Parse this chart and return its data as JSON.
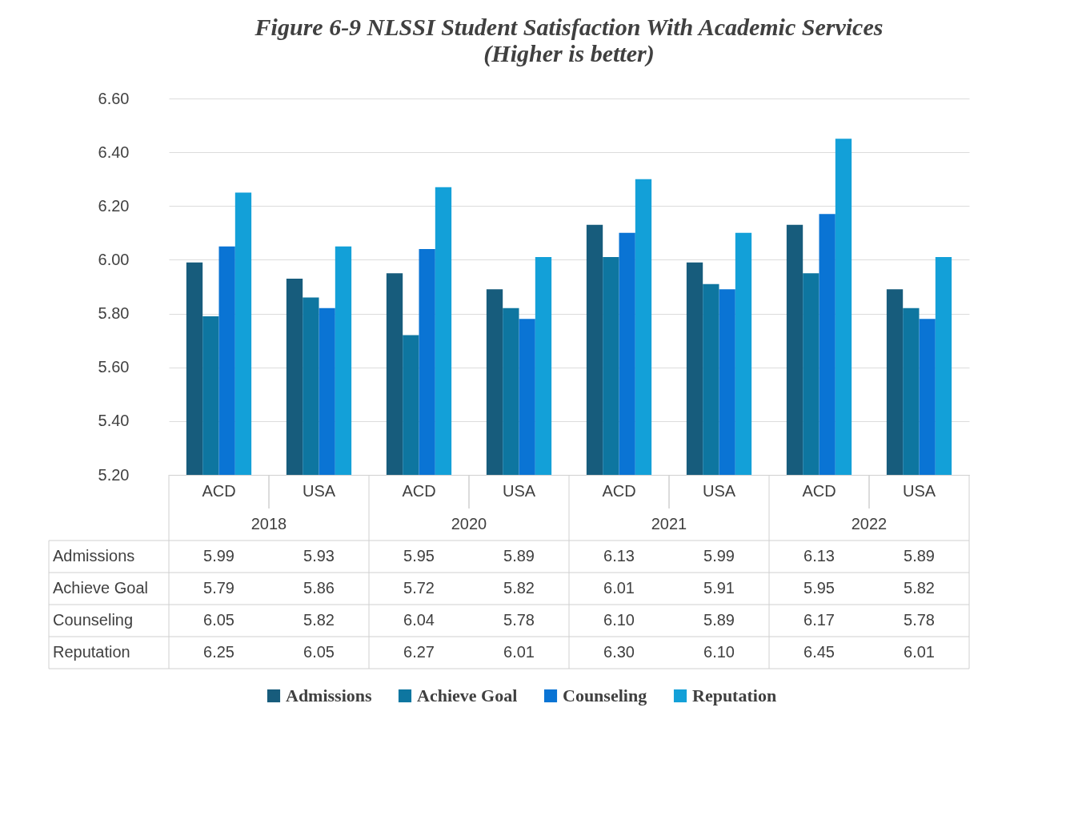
{
  "chart_data": {
    "type": "bar",
    "title": "Figure 6-9 NLSSI Student Satisfaction With Academic Services",
    "subtitle": "(Higher is better)",
    "categories": [
      "ACD",
      "USA",
      "ACD",
      "USA",
      "ACD",
      "USA",
      "ACD",
      "USA"
    ],
    "annotations": [
      "2018",
      "2020",
      "2021",
      "2022"
    ],
    "series": [
      {
        "name": "Admissions",
        "color": "#175c7c",
        "values": [
          5.99,
          5.93,
          5.95,
          5.89,
          6.13,
          5.99,
          6.13,
          5.89
        ],
        "value_labels": [
          "5.99",
          "5.93",
          "5.95",
          "5.89",
          "6.13",
          "5.99",
          "6.13",
          "5.89"
        ]
      },
      {
        "name": "Achieve Goal",
        "color": "#0e76a0",
        "values": [
          5.79,
          5.86,
          5.72,
          5.82,
          6.01,
          5.91,
          5.95,
          5.82
        ],
        "value_labels": [
          "5.79",
          "5.86",
          "5.72",
          "5.82",
          "6.01",
          "5.91",
          "5.95",
          "5.82"
        ]
      },
      {
        "name": "Counseling",
        "color": "#0a74d4",
        "values": [
          6.05,
          5.82,
          6.04,
          5.78,
          6.1,
          5.89,
          6.17,
          5.78
        ],
        "value_labels": [
          "6.05",
          "5.82",
          "6.04",
          "5.78",
          "6.10",
          "5.89",
          "6.17",
          "5.78"
        ]
      },
      {
        "name": "Reputation",
        "color": "#13a0d8",
        "values": [
          6.25,
          6.05,
          6.27,
          6.01,
          6.3,
          6.1,
          6.45,
          6.01
        ],
        "value_labels": [
          "6.25",
          "6.05",
          "6.27",
          "6.01",
          "6.30",
          "6.10",
          "6.45",
          "6.01"
        ]
      }
    ],
    "ylim": [
      5.2,
      6.6
    ],
    "yticks": [
      {
        "value": 5.2,
        "label": "5.20"
      },
      {
        "value": 5.4,
        "label": "5.40"
      },
      {
        "value": 5.6,
        "label": "5.60"
      },
      {
        "value": 5.8,
        "label": "5.80"
      },
      {
        "value": 6.0,
        "label": "6.00"
      },
      {
        "value": 6.2,
        "label": "6.20"
      },
      {
        "value": 6.4,
        "label": "6.40"
      },
      {
        "value": 6.6,
        "label": "6.60"
      }
    ],
    "grid": "y",
    "legend": "bottom"
  }
}
